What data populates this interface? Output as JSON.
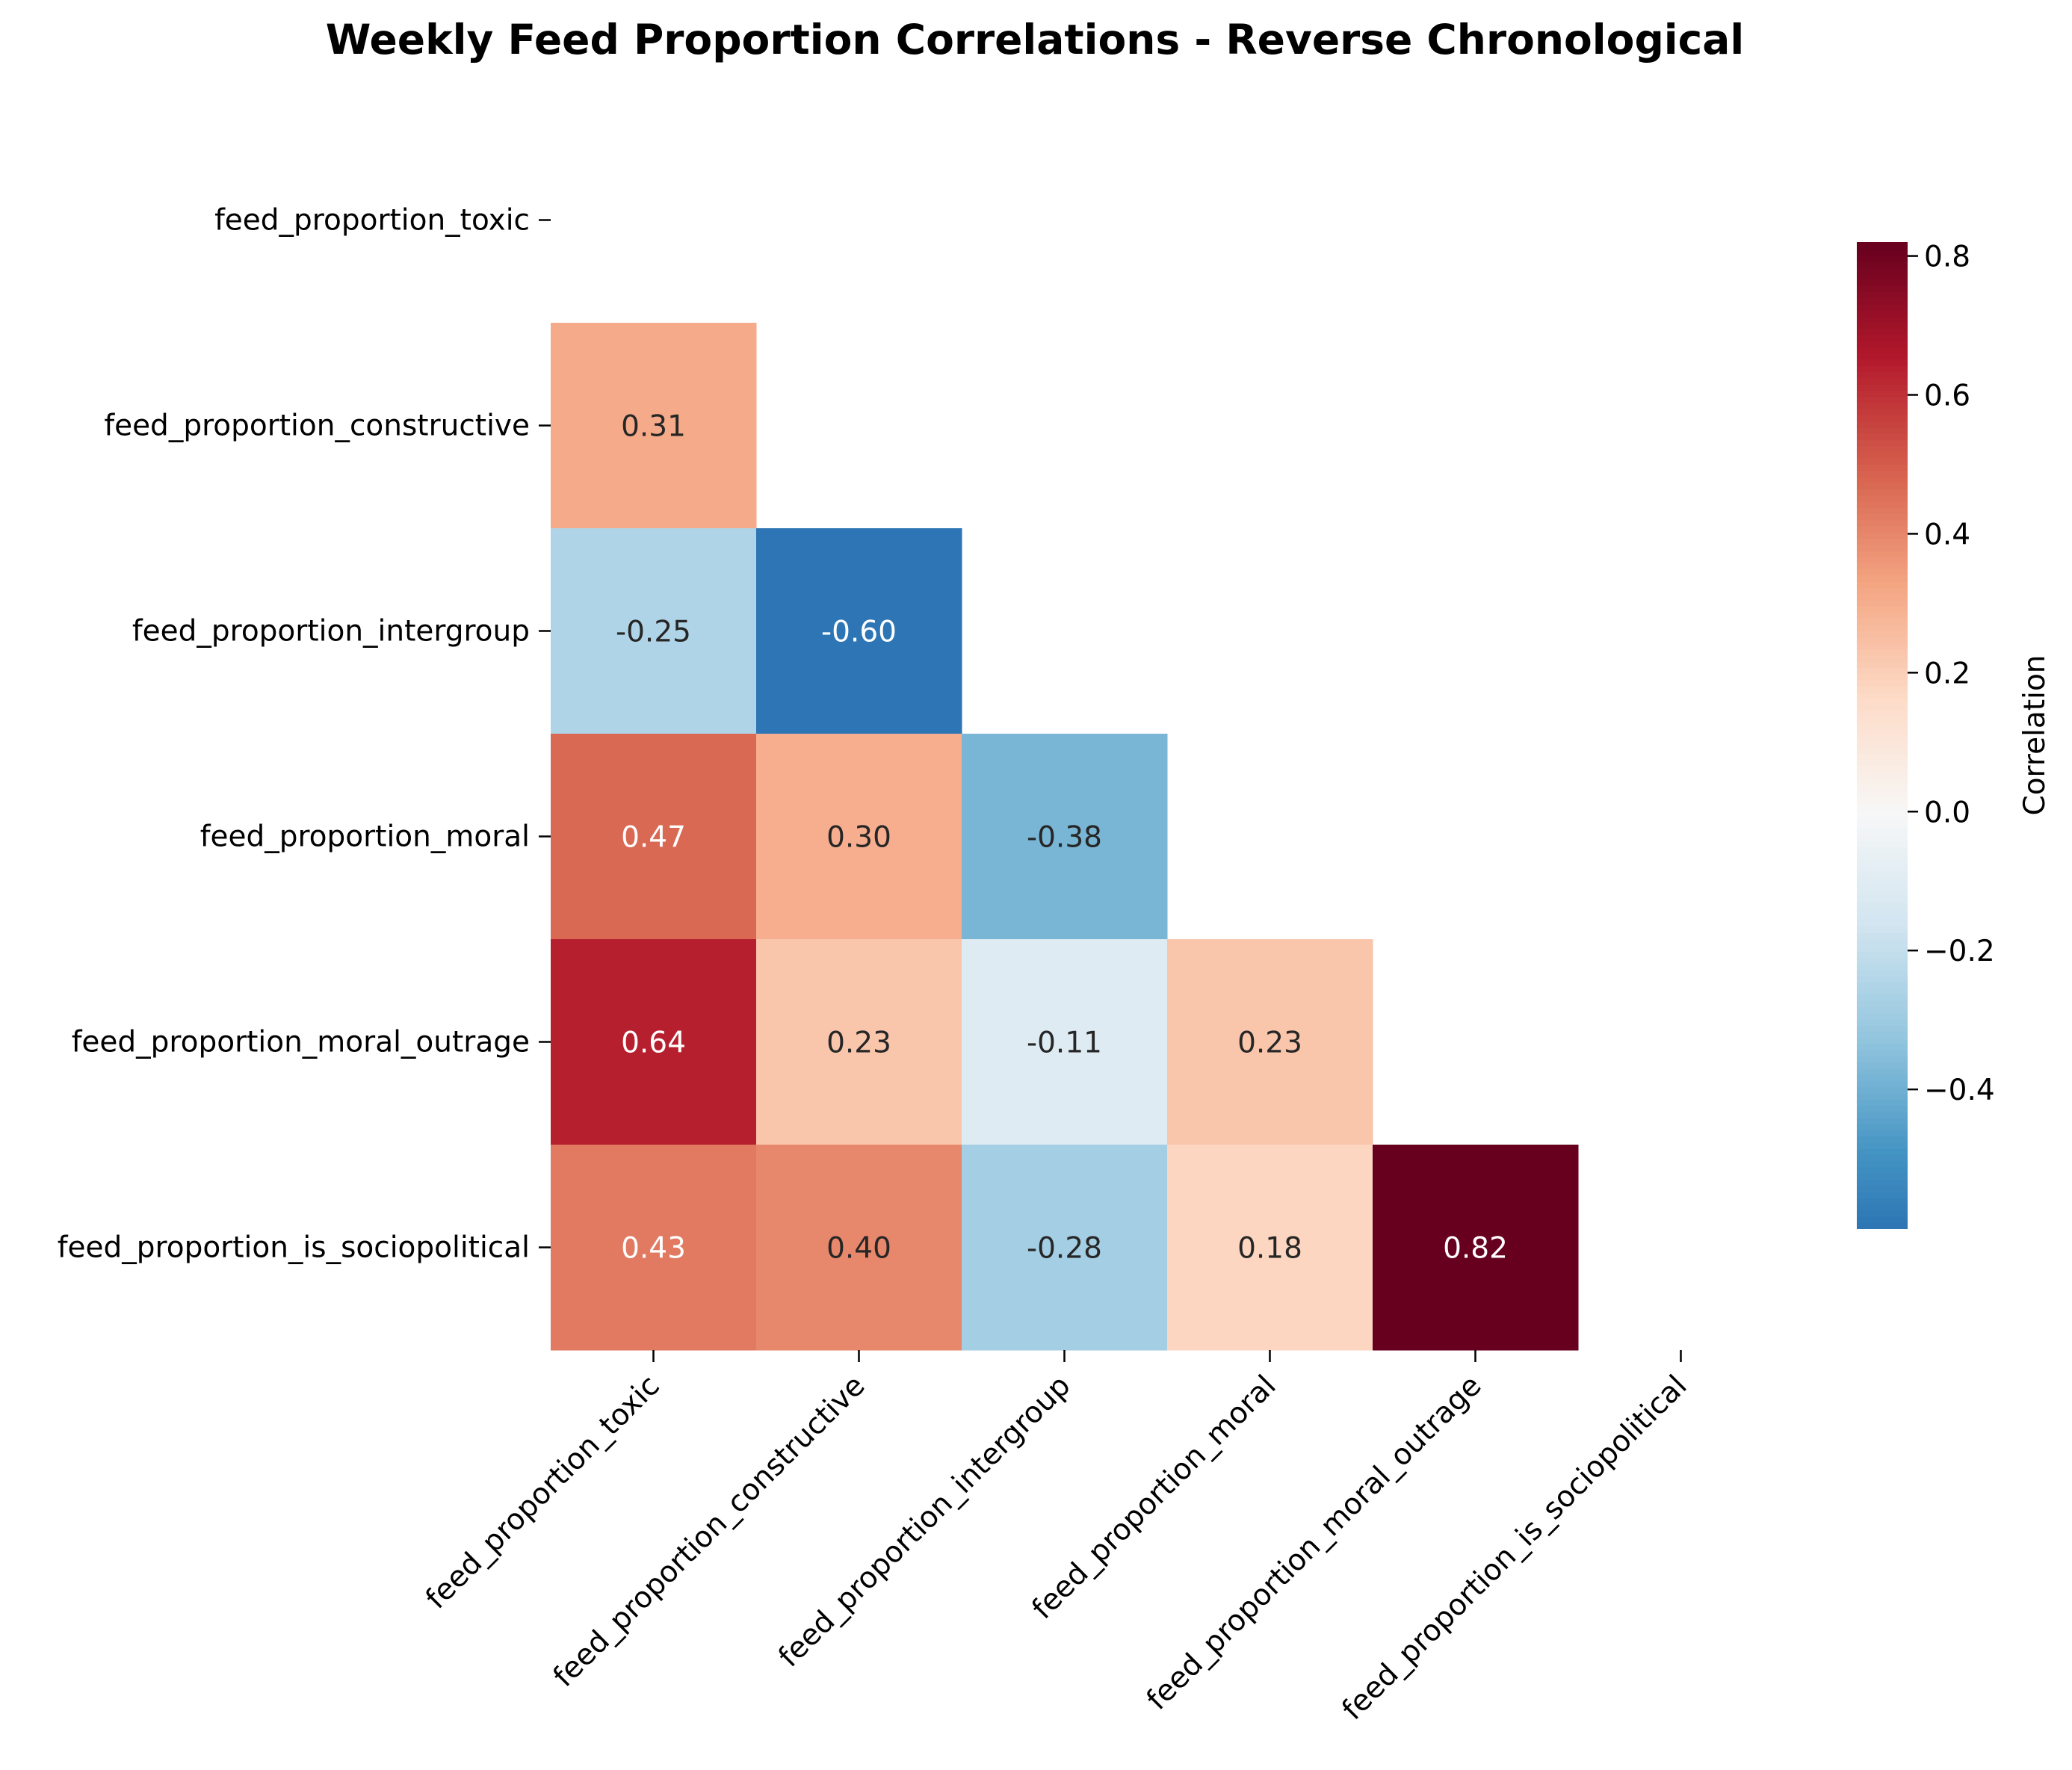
{
  "chart_data": {
    "type": "heatmap",
    "title": "Weekly Feed Proportion Correlations - Reverse Chronological",
    "xlabel": "",
    "ylabel": "",
    "rows": [
      "feed_proportion_toxic",
      "feed_proportion_constructive",
      "feed_proportion_intergroup",
      "feed_proportion_moral",
      "feed_proportion_moral_outrage",
      "feed_proportion_is_sociopolitical"
    ],
    "columns": [
      "feed_proportion_toxic",
      "feed_proportion_constructive",
      "feed_proportion_intergroup",
      "feed_proportion_moral",
      "feed_proportion_moral_outrage",
      "feed_proportion_is_sociopolitical"
    ],
    "mask": "upper-triangle-including-diagonal",
    "values": [
      [
        null,
        null,
        null,
        null,
        null,
        null
      ],
      [
        0.31,
        null,
        null,
        null,
        null,
        null
      ],
      [
        -0.25,
        -0.6,
        null,
        null,
        null,
        null
      ],
      [
        0.47,
        0.3,
        -0.38,
        null,
        null,
        null
      ],
      [
        0.64,
        0.23,
        -0.11,
        0.23,
        null,
        null
      ],
      [
        0.43,
        0.4,
        -0.28,
        0.18,
        0.82,
        null
      ]
    ],
    "colorbar": {
      "label": "Correlation",
      "colormap": "RdBu_r",
      "vmin": -0.6,
      "vmax": 0.82,
      "ticks": [
        -0.4,
        -0.2,
        0.0,
        0.2,
        0.4,
        0.6,
        0.8
      ],
      "tick_labels": [
        "−0.4",
        "−0.2",
        "0.0",
        "0.2",
        "0.4",
        "0.6",
        "0.8"
      ]
    },
    "colors": {
      "text_light": "#ffffff",
      "text_dark": "#262626",
      "axis": "#000000"
    }
  }
}
